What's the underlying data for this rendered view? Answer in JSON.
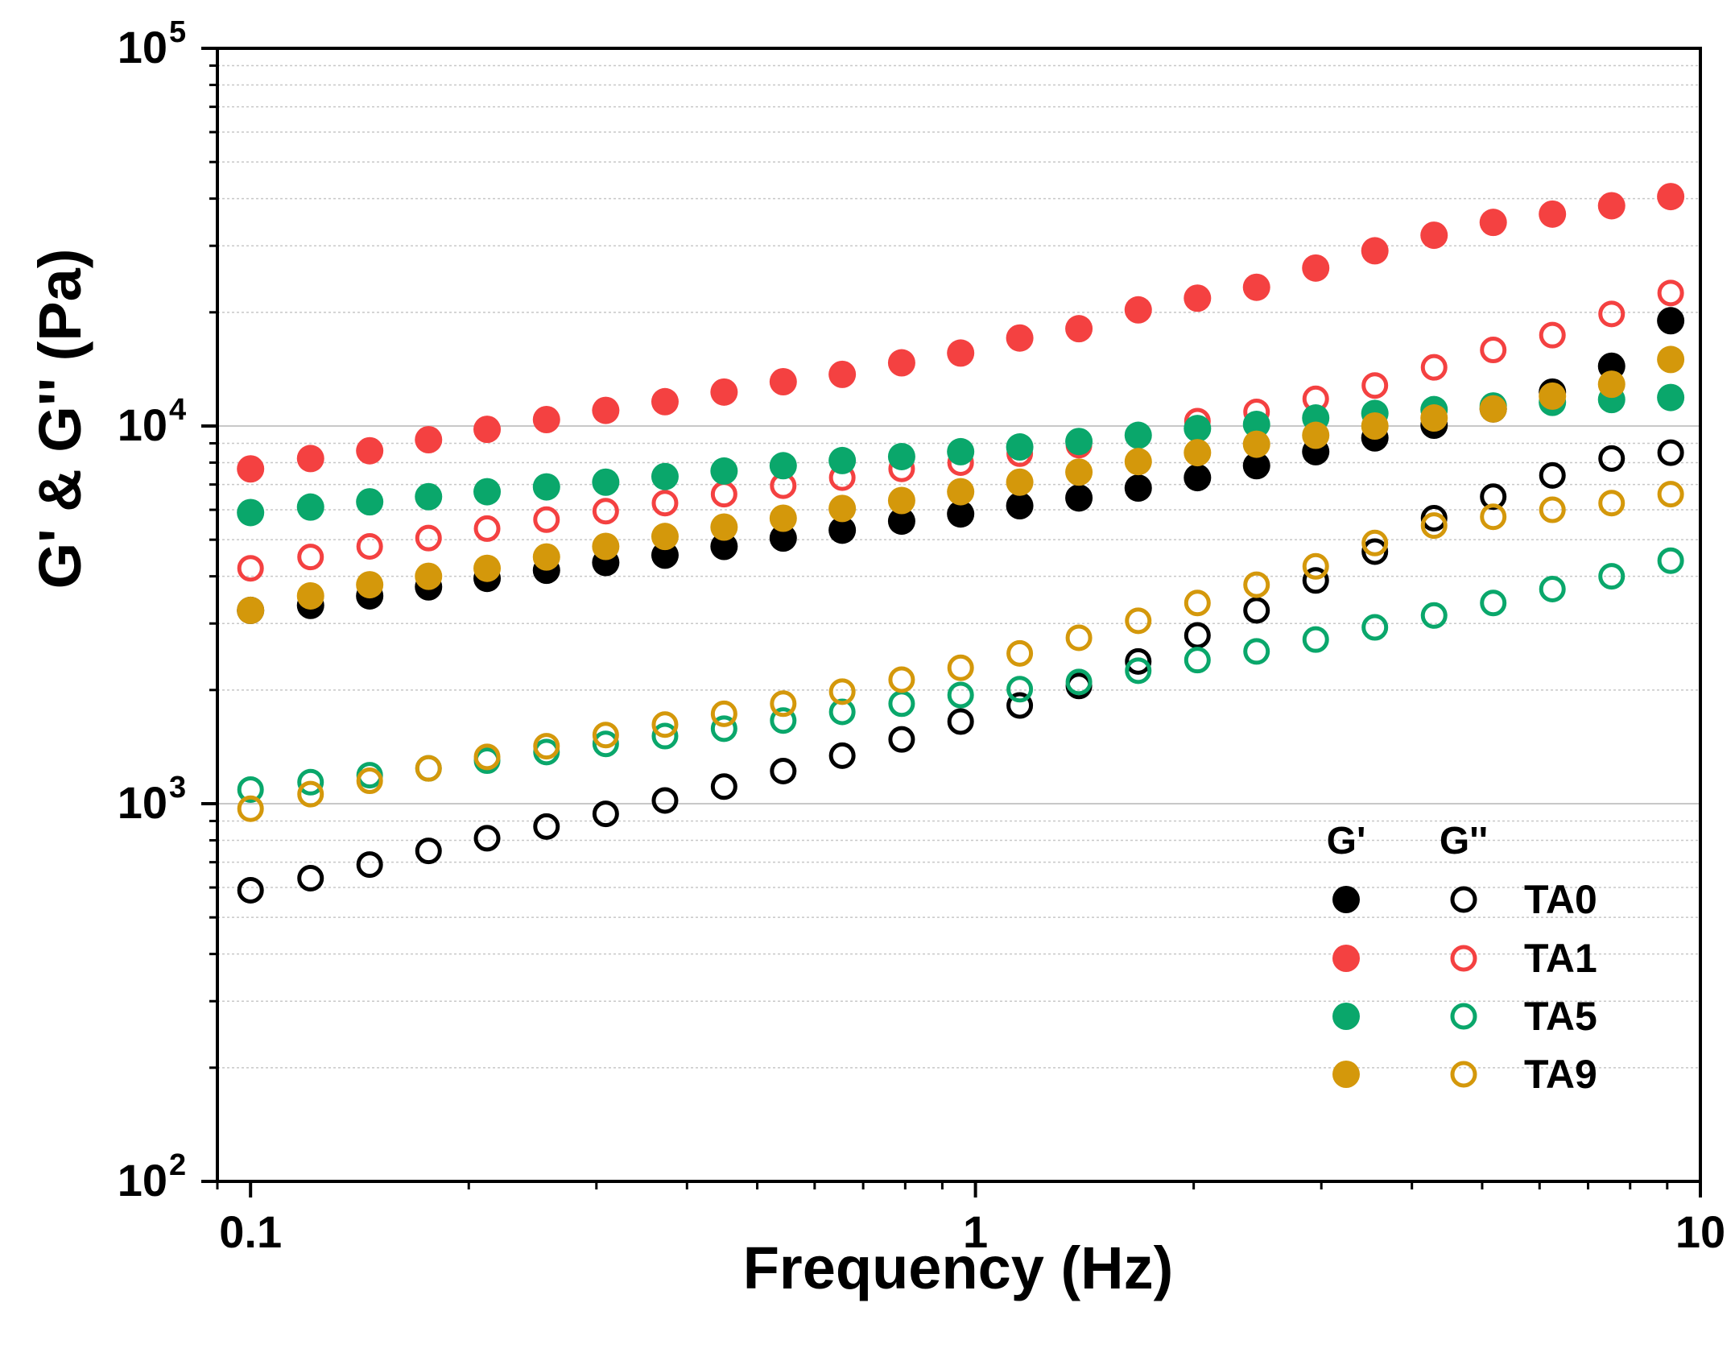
{
  "chart_data": {
    "type": "scatter",
    "xlabel": "Frequency (Hz)",
    "ylabel": "G' & G'' (Pa)",
    "xscale": "log",
    "yscale": "log",
    "xlim": [
      0.09,
      10
    ],
    "ylim": [
      100,
      100000
    ],
    "x_ticks": [
      {
        "value": 0.1,
        "label": "0.1"
      },
      {
        "value": 1,
        "label": "1"
      },
      {
        "value": 10,
        "label": "10"
      }
    ],
    "y_ticks": [
      {
        "value": 100,
        "base": "10",
        "exp": "2"
      },
      {
        "value": 1000,
        "base": "10",
        "exp": "3"
      },
      {
        "value": 10000,
        "base": "10",
        "exp": "4"
      },
      {
        "value": 100000,
        "base": "10",
        "exp": "5"
      }
    ],
    "grid": "major solid, minor dotted",
    "legend": {
      "position": "bottom-right",
      "header_storage": "G'",
      "header_loss": "G''",
      "entries": [
        "TA0",
        "TA1",
        "TA5",
        "TA9"
      ]
    },
    "x": [
      0.1,
      0.121,
      0.146,
      0.176,
      0.212,
      0.256,
      0.309,
      0.373,
      0.45,
      0.543,
      0.655,
      0.791,
      0.954,
      1.151,
      1.389,
      1.677,
      2.024,
      2.442,
      2.947,
      3.556,
      4.292,
      5.179,
      6.25,
      7.543,
      9.1
    ],
    "series": [
      {
        "name": "TA0 G'",
        "sample": "TA0",
        "modulus": "storage",
        "filled": true,
        "color": "#000000",
        "values": [
          3250,
          3350,
          3550,
          3750,
          3950,
          4150,
          4350,
          4550,
          4800,
          5050,
          5300,
          5600,
          5850,
          6150,
          6450,
          6850,
          7300,
          7850,
          8550,
          9300,
          10050,
          11100,
          12300,
          14400,
          19000
        ]
      },
      {
        "name": "TA0 G''",
        "sample": "TA0",
        "modulus": "loss",
        "filled": false,
        "color": "#000000",
        "values": [
          590,
          635,
          690,
          750,
          810,
          870,
          940,
          1020,
          1110,
          1220,
          1340,
          1480,
          1650,
          1820,
          2050,
          2380,
          2790,
          3250,
          3900,
          4650,
          5700,
          6500,
          7400,
          8200,
          8500
        ]
      },
      {
        "name": "TA1 G'",
        "sample": "TA1",
        "modulus": "storage",
        "filled": true,
        "color": "#f44141",
        "values": [
          7700,
          8200,
          8600,
          9200,
          9800,
          10400,
          11000,
          11600,
          12300,
          13100,
          13700,
          14700,
          15600,
          17100,
          18100,
          20300,
          21800,
          23300,
          26200,
          29100,
          32000,
          34600,
          36400,
          38300,
          40500
        ]
      },
      {
        "name": "TA1 G''",
        "sample": "TA1",
        "modulus": "loss",
        "filled": false,
        "color": "#f44141",
        "values": [
          4200,
          4500,
          4800,
          5050,
          5350,
          5650,
          5950,
          6250,
          6600,
          6950,
          7300,
          7700,
          8000,
          8450,
          8900,
          9450,
          10300,
          10900,
          11800,
          12800,
          14300,
          15900,
          17400,
          19800,
          22500
        ]
      },
      {
        "name": "TA5 G'",
        "sample": "TA5",
        "modulus": "storage",
        "filled": true,
        "color": "#0aa76b",
        "values": [
          5900,
          6100,
          6300,
          6500,
          6700,
          6900,
          7100,
          7350,
          7600,
          7850,
          8100,
          8300,
          8550,
          8800,
          9100,
          9450,
          9850,
          10100,
          10500,
          10800,
          11050,
          11300,
          11550,
          11750,
          11900
        ]
      },
      {
        "name": "TA5 G''",
        "sample": "TA5",
        "modulus": "loss",
        "filled": false,
        "color": "#0aa76b",
        "values": [
          1090,
          1140,
          1190,
          1240,
          1300,
          1370,
          1440,
          1510,
          1580,
          1660,
          1750,
          1840,
          1940,
          2010,
          2100,
          2250,
          2400,
          2530,
          2720,
          2930,
          3150,
          3400,
          3700,
          4000,
          4400
        ]
      },
      {
        "name": "TA9 G'",
        "sample": "TA9",
        "modulus": "storage",
        "filled": true,
        "color": "#d4980b",
        "values": [
          3250,
          3550,
          3800,
          4000,
          4200,
          4500,
          4800,
          5100,
          5400,
          5700,
          6050,
          6350,
          6700,
          7100,
          7550,
          8050,
          8500,
          8950,
          9450,
          10000,
          10500,
          11100,
          12000,
          12900,
          15000
        ]
      },
      {
        "name": "TA9 G''",
        "sample": "TA9",
        "modulus": "loss",
        "filled": false,
        "color": "#d4980b",
        "values": [
          970,
          1060,
          1150,
          1240,
          1330,
          1420,
          1520,
          1620,
          1730,
          1840,
          1980,
          2130,
          2290,
          2500,
          2750,
          3050,
          3400,
          3800,
          4250,
          4900,
          5450,
          5750,
          6000,
          6250,
          6600
        ]
      }
    ]
  }
}
